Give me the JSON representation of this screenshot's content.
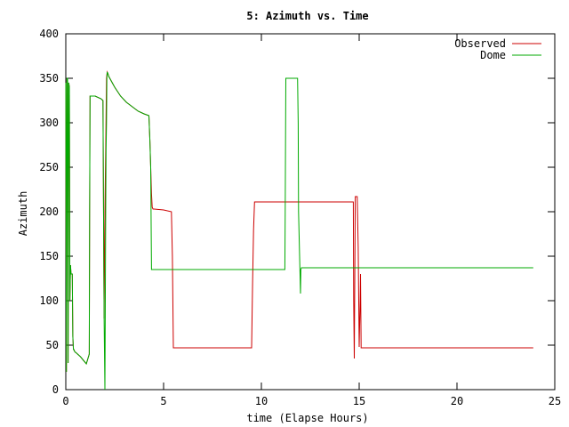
{
  "chart_data": {
    "type": "line",
    "title": "5: Azimuth vs. Time",
    "xlabel": "time (Elapse Hours)",
    "ylabel": "Azimuth",
    "xlim": [
      0,
      25
    ],
    "ylim": [
      0,
      400
    ],
    "xticks": [
      0,
      5,
      10,
      15,
      20,
      25
    ],
    "yticks": [
      0,
      50,
      100,
      150,
      200,
      250,
      300,
      350,
      400
    ],
    "grid": false,
    "legend_position": "top-right",
    "series": [
      {
        "name": "Observed",
        "color": "#cc0000",
        "x": [
          0.0,
          0.03,
          0.06,
          0.09,
          0.12,
          0.15,
          0.18,
          0.21,
          0.24,
          0.27,
          0.3,
          0.33,
          0.36,
          0.39,
          0.42,
          0.45,
          0.48,
          0.5,
          0.5,
          0.6,
          0.75,
          0.9,
          1.05,
          1.2,
          1.22,
          1.24,
          1.24,
          1.5,
          1.8,
          1.9,
          1.92,
          1.96,
          2.0,
          2.04,
          2.08,
          2.12,
          2.16,
          2.2,
          2.5,
          2.8,
          3.1,
          3.4,
          3.7,
          4.0,
          4.25,
          4.3,
          4.34,
          4.38,
          4.42,
          4.46,
          4.5,
          4.52,
          4.52,
          5.0,
          5.4,
          5.45,
          5.5,
          5.5,
          9.5,
          9.55,
          9.6,
          9.65,
          9.65,
          14.7,
          14.72,
          14.75,
          14.78,
          14.8,
          14.8,
          14.9,
          14.95,
          15.0,
          15.05,
          15.07,
          15.1,
          15.1,
          15.15,
          23.9
        ],
        "y": [
          345.0,
          20.0,
          350.0,
          350.0,
          30.0,
          345.0,
          340.0,
          100.0,
          140.0,
          130.0,
          130.0,
          130.0,
          60.0,
          45.0,
          45.0,
          43.0,
          42.0,
          42.0,
          42.0,
          40.0,
          37.0,
          33.0,
          29.0,
          40.0,
          200.0,
          330.0,
          330.0,
          330.0,
          327.0,
          325.0,
          250.0,
          80.0,
          200.0,
          270.0,
          350.0,
          357.0,
          355.0,
          352.0,
          340.0,
          330.0,
          323.0,
          318.0,
          313.0,
          310.0,
          308.0,
          280.0,
          250.0,
          220.0,
          205.0,
          203.0,
          203.0,
          203.0,
          203.0,
          202.0,
          200.0,
          150.0,
          47.0,
          47.0,
          47.0,
          120.0,
          180.0,
          211.0,
          211.0,
          211.0,
          100.0,
          35.0,
          150.0,
          217.0,
          217.0,
          217.0,
          160.0,
          48.0,
          100.0,
          130.0,
          47.0,
          47.0,
          47.0,
          47.0
        ]
      },
      {
        "name": "Dome",
        "color": "#00aa00",
        "x": [
          0.0,
          0.03,
          0.06,
          0.09,
          0.12,
          0.15,
          0.18,
          0.21,
          0.24,
          0.27,
          0.3,
          0.33,
          0.36,
          0.39,
          0.42,
          0.45,
          0.48,
          0.5,
          0.5,
          0.6,
          0.75,
          0.9,
          1.05,
          1.2,
          1.22,
          1.24,
          1.24,
          1.5,
          1.8,
          1.9,
          1.92,
          1.96,
          2.0,
          2.04,
          2.06,
          2.08,
          2.1,
          2.12,
          2.16,
          2.2,
          2.5,
          2.8,
          3.1,
          3.4,
          3.7,
          4.0,
          4.25,
          4.3,
          4.34,
          4.38,
          4.42,
          4.46,
          4.5,
          4.5,
          11.2,
          11.22,
          11.25,
          11.25,
          11.85,
          11.88,
          11.9,
          12.0,
          12.02,
          12.05,
          12.05,
          12.2,
          23.9
        ],
        "y": [
          345.0,
          20.0,
          350.0,
          350.0,
          30.0,
          345.0,
          340.0,
          100.0,
          140.0,
          130.0,
          130.0,
          130.0,
          60.0,
          45.0,
          45.0,
          43.0,
          42.0,
          42.0,
          42.0,
          40.0,
          37.0,
          33.0,
          29.0,
          40.0,
          200.0,
          330.0,
          330.0,
          330.0,
          327.0,
          325.0,
          250.0,
          80.0,
          0.0,
          200.0,
          270.0,
          300.0,
          350.0,
          357.0,
          355.0,
          352.0,
          340.0,
          330.0,
          323.0,
          318.0,
          313.0,
          310.0,
          308.0,
          280.0,
          250.0,
          135.0,
          135.0,
          135.0,
          135.0,
          135.0,
          135.0,
          200.0,
          350.0,
          350.0,
          350.0,
          300.0,
          200.0,
          108.0,
          135.0,
          137.0,
          137.0,
          137.0,
          137.0
        ]
      }
    ]
  }
}
